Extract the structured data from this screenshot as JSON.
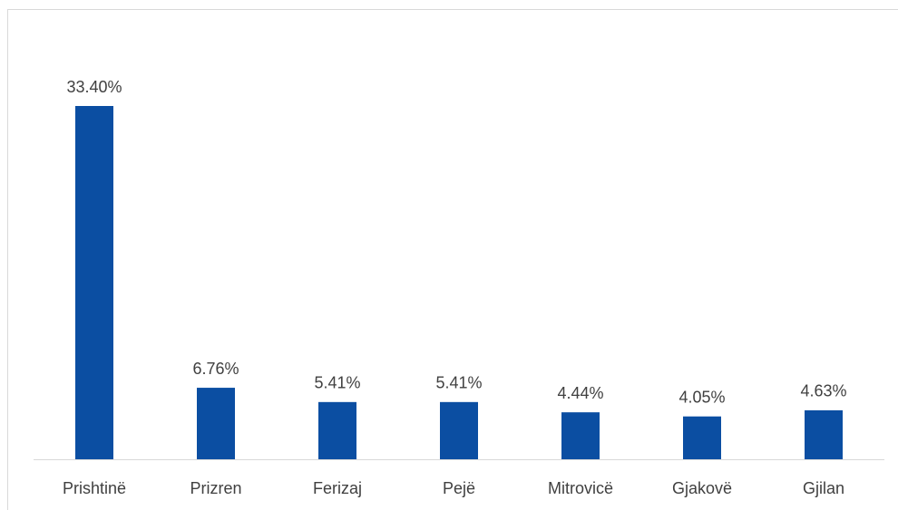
{
  "chart_data": {
    "type": "bar",
    "categories": [
      "Prishtinë",
      "Prizren",
      "Ferizaj",
      "Pejë",
      "Mitrovicë",
      "Gjakovë",
      "Gjilan"
    ],
    "values": [
      33.4,
      6.76,
      5.41,
      5.41,
      4.44,
      4.05,
      4.63
    ],
    "value_labels": [
      "33.40%",
      "6.76%",
      "5.41%",
      "5.41%",
      "4.44%",
      "4.05%",
      "4.63%"
    ],
    "color": "#0b4ea2"
  }
}
